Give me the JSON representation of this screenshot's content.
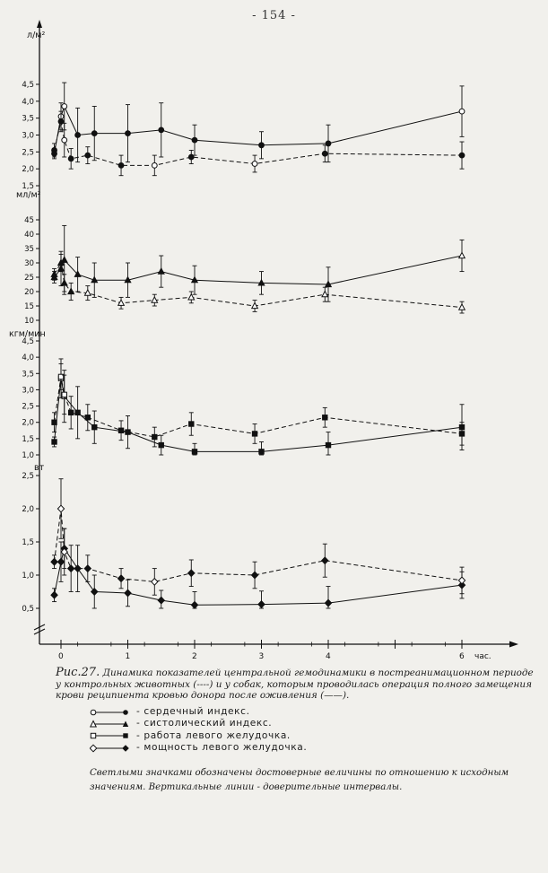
{
  "page_number": "- 154 -",
  "x_axis": {
    "unit_label": "час.",
    "ticks": [
      0,
      1,
      2,
      3,
      4,
      6
    ],
    "range": [
      -0.15,
      6.6
    ]
  },
  "chart_data": [
    {
      "type": "line",
      "ylabel": "л/м²",
      "ylim": [
        1.5,
        4.5
      ],
      "yticks": [
        "1,5",
        "2,0",
        "2,5",
        "3,0",
        "3,5",
        "4,0",
        "4,5"
      ],
      "yticks_values": [
        1.5,
        2.0,
        2.5,
        3.0,
        3.5,
        4.0,
        4.5
      ],
      "series": [
        {
          "style": "solid",
          "x": [
            -0.1,
            0.0,
            0.05,
            0.25,
            0.5,
            1.0,
            1.5,
            2.0,
            3.0,
            4.0,
            6.0
          ],
          "y": [
            2.45,
            3.55,
            3.85,
            3.0,
            3.05,
            3.05,
            3.15,
            2.85,
            2.7,
            2.75,
            3.7
          ],
          "err": [
            0.15,
            0.4,
            0.7,
            0.8,
            0.8,
            0.85,
            0.8,
            0.45,
            0.4,
            0.55,
            0.75
          ],
          "open": [
            false,
            true,
            true,
            false,
            false,
            false,
            false,
            false,
            false,
            false,
            true
          ]
        },
        {
          "style": "dashed",
          "x": [
            -0.1,
            0.0,
            0.05,
            0.15,
            0.4,
            0.9,
            1.4,
            1.95,
            2.9,
            3.95,
            6.0
          ],
          "y": [
            2.55,
            3.4,
            2.85,
            2.3,
            2.4,
            2.1,
            2.1,
            2.35,
            2.15,
            2.45,
            2.4
          ],
          "err": [
            0.2,
            0.3,
            0.5,
            0.3,
            0.25,
            0.3,
            0.3,
            0.2,
            0.25,
            0.25,
            0.4
          ],
          "open": [
            false,
            false,
            true,
            false,
            false,
            false,
            true,
            false,
            true,
            false,
            false
          ]
        }
      ]
    },
    {
      "type": "line",
      "ylabel": "мл/м²",
      "ylim": [
        10,
        45
      ],
      "yticks": [
        "10",
        "15",
        "20",
        "25",
        "30",
        "35",
        "40",
        "45"
      ],
      "yticks_values": [
        10,
        15,
        20,
        25,
        30,
        35,
        40,
        45
      ],
      "series": [
        {
          "style": "solid",
          "x": [
            -0.1,
            0.0,
            0.05,
            0.25,
            0.5,
            1.0,
            1.5,
            2.0,
            3.0,
            4.0,
            6.0
          ],
          "y": [
            25,
            28,
            31,
            26,
            24,
            24,
            27,
            24,
            23,
            22.5,
            32.5
          ],
          "err": [
            2,
            6,
            12,
            6,
            6,
            6,
            5.5,
            5,
            4,
            6,
            5.5
          ],
          "open": [
            false,
            false,
            false,
            false,
            false,
            false,
            false,
            false,
            false,
            false,
            true
          ]
        },
        {
          "style": "dashed",
          "x": [
            -0.1,
            0.0,
            0.05,
            0.15,
            0.4,
            0.9,
            1.4,
            1.95,
            2.9,
            3.95,
            6.0
          ],
          "y": [
            26,
            30,
            23,
            20,
            19.5,
            16,
            17,
            18,
            15,
            19,
            14.5
          ],
          "err": [
            2,
            3,
            3,
            3,
            2.5,
            2,
            2,
            2,
            2,
            2.5,
            2
          ],
          "open": [
            false,
            false,
            false,
            false,
            true,
            true,
            true,
            true,
            true,
            true,
            true
          ]
        }
      ]
    },
    {
      "type": "line",
      "ylabel": "кгм/мин",
      "ylim": [
        1.0,
        4.5
      ],
      "yticks": [
        "1,0",
        "1,5",
        "2,0",
        "2,5",
        "3,0",
        "3,5",
        "4,0",
        "4,5"
      ],
      "yticks_values": [
        1.0,
        1.5,
        2.0,
        2.5,
        3.0,
        3.5,
        4.0,
        4.5
      ],
      "series": [
        {
          "style": "solid",
          "x": [
            -0.1,
            0.0,
            0.05,
            0.25,
            0.5,
            1.0,
            1.5,
            2.0,
            3.0,
            4.0,
            6.0
          ],
          "y": [
            1.4,
            3.35,
            2.8,
            2.3,
            1.85,
            1.7,
            1.3,
            1.1,
            1.1,
            1.3,
            1.85
          ],
          "err": [
            0.15,
            0.6,
            0.8,
            0.8,
            0.5,
            0.5,
            0.3,
            0.25,
            0.3,
            0.4,
            0.7
          ],
          "open": [
            false,
            true,
            true,
            false,
            false,
            false,
            false,
            false,
            false,
            false,
            false
          ]
        },
        {
          "style": "dashed",
          "x": [
            -0.1,
            0.0,
            0.05,
            0.15,
            0.4,
            0.9,
            1.4,
            1.95,
            2.9,
            3.95,
            6.0
          ],
          "y": [
            2.0,
            3.4,
            2.85,
            2.3,
            2.15,
            1.75,
            1.55,
            1.95,
            1.65,
            2.15,
            1.65
          ],
          "err": [
            0.3,
            0.4,
            0.6,
            0.5,
            0.4,
            0.3,
            0.3,
            0.35,
            0.3,
            0.3,
            0.35
          ],
          "open": [
            false,
            true,
            true,
            false,
            false,
            false,
            false,
            false,
            false,
            false,
            false
          ]
        }
      ]
    },
    {
      "type": "line",
      "ylabel": "вт",
      "ylim": [
        0.5,
        2.5
      ],
      "yticks": [
        "0,5",
        "1,0",
        "1,5",
        "2,0",
        "2,5"
      ],
      "yticks_values": [
        0.5,
        1.0,
        1.5,
        2.0,
        2.5
      ],
      "series": [
        {
          "style": "solid",
          "x": [
            -0.1,
            0.0,
            0.05,
            0.25,
            0.5,
            1.0,
            1.5,
            2.0,
            3.0,
            4.0,
            6.0
          ],
          "y": [
            0.7,
            1.2,
            1.4,
            1.1,
            0.75,
            0.73,
            0.62,
            0.55,
            0.56,
            0.58,
            0.85
          ],
          "err": [
            0.1,
            0.3,
            0.3,
            0.35,
            0.25,
            0.2,
            0.15,
            0.2,
            0.2,
            0.25,
            0.2
          ],
          "open": [
            false,
            false,
            false,
            false,
            false,
            false,
            false,
            false,
            false,
            false,
            false
          ]
        },
        {
          "style": "dashed",
          "x": [
            -0.1,
            0.0,
            0.05,
            0.15,
            0.4,
            0.9,
            1.4,
            1.95,
            2.9,
            3.95,
            6.0
          ],
          "y": [
            1.2,
            2.0,
            1.35,
            1.1,
            1.1,
            0.95,
            0.9,
            1.03,
            1.0,
            1.22,
            0.92
          ],
          "err": [
            0.1,
            0.45,
            0.35,
            0.35,
            0.2,
            0.15,
            0.2,
            0.2,
            0.2,
            0.25,
            0.2
          ],
          "open": [
            false,
            true,
            true,
            false,
            false,
            false,
            true,
            false,
            false,
            false,
            true
          ]
        }
      ]
    }
  ],
  "caption": {
    "label": "Рис.27.",
    "text": "Динамика показателей центральной гемодинамики в постреанимационном периоде у контрольных животных (----) и у собак, которым проводилась операция полного замещения крови реципиента кровью донора после оживления (——)."
  },
  "legend": [
    {
      "text": "- сердечный индекс.",
      "marker": "circle"
    },
    {
      "text": "- систолический индекс.",
      "marker": "triangle"
    },
    {
      "text": "- работа левого желудочка.",
      "marker": "square"
    },
    {
      "text": "- мощность левого желудочка.",
      "marker": "diamond"
    }
  ],
  "note": "Светлыми значками обозначены достоверные величины по отношению к исходным значениям. Вертикальные линии - доверительные интервалы."
}
